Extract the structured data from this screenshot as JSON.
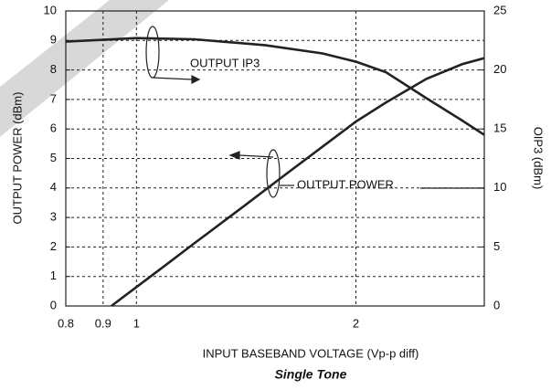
{
  "chart_data": {
    "type": "line",
    "subtitle": "Single Tone",
    "xlabel": "INPUT BASEBAND VOLTAGE (Vp-p diff)",
    "ylabel": "OUTPUT POWER (dBm)",
    "y2label": "OIP3 (dBm)",
    "annotations": [
      "OUTPUT IP3",
      "OUTPUT POWER"
    ],
    "xscale": "log",
    "xlim": [
      0.8,
      3
    ],
    "xticks": [
      0.8,
      0.9,
      1,
      2
    ],
    "ylim": [
      0,
      10
    ],
    "yticks": [
      0,
      1,
      2,
      3,
      4,
      5,
      6,
      7,
      8,
      9,
      10
    ],
    "y2lim": [
      0,
      25
    ],
    "y2ticks": [
      0,
      5,
      10,
      15,
      20,
      25
    ],
    "grid": true,
    "series": [
      {
        "name": "OUTPUT POWER",
        "color": "#222222",
        "x": [
          0.924,
          1.0,
          1.1,
          1.2,
          1.4,
          1.6,
          1.8,
          2.0,
          2.2,
          2.5,
          2.8,
          3.0
        ],
        "values": [
          0,
          0.64,
          1.41,
          2.12,
          3.36,
          4.45,
          5.4,
          6.25,
          6.9,
          7.7,
          8.2,
          8.4
        ]
      },
      {
        "name": "OUTPUT IP3",
        "color": "#222222",
        "axis": "y2",
        "x": [
          0.8,
          1.0,
          1.2,
          1.5,
          1.8,
          2.0,
          2.2,
          2.5,
          2.8,
          3.0
        ],
        "values": [
          22.4,
          22.7,
          22.6,
          22.1,
          21.4,
          20.7,
          19.8,
          17.6,
          15.7,
          14.5
        ]
      }
    ]
  }
}
